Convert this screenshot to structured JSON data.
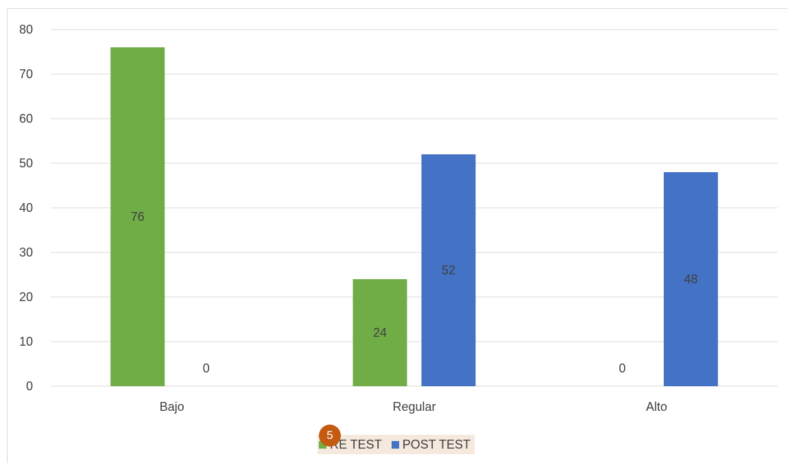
{
  "chart_data": {
    "type": "bar",
    "categories": [
      "Bajo",
      "Regular",
      "Alto"
    ],
    "series": [
      {
        "name": "PRE TEST",
        "values": [
          76,
          24,
          0
        ],
        "color": "#70ad47"
      },
      {
        "name": "POST TEST",
        "values": [
          0,
          52,
          48
        ],
        "color": "#4472c4"
      }
    ],
    "ylim": [
      0,
      80
    ],
    "yticks": [
      0,
      10,
      20,
      30,
      40,
      50,
      60,
      70,
      80
    ],
    "grid": true,
    "legend_position": "bottom",
    "title": "",
    "xlabel": "",
    "ylabel": ""
  },
  "legend": {
    "items": [
      {
        "label": "RE TEST",
        "color": "#70ad47"
      },
      {
        "label": "POST TEST",
        "color": "#4472c4"
      }
    ]
  },
  "badge": {
    "number": "5",
    "color": "#c55a11"
  },
  "colors": {
    "gridline": "#d9d9d9",
    "text": "#404040"
  }
}
